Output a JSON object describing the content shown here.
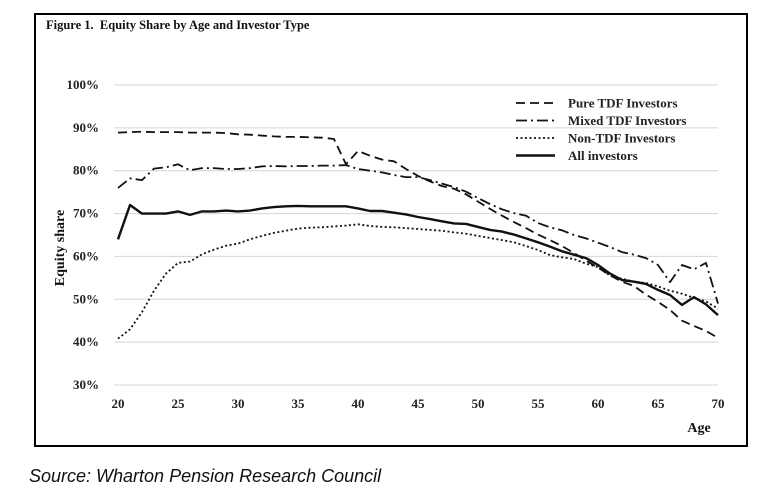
{
  "figure_title": "Figure 1.  Equity Share by Age and Investor Type",
  "source_note": "Source: Wharton Pension Research Council",
  "chart_data": {
    "type": "line",
    "title": "Figure 1.  Equity Share by Age and Investor Type",
    "xlabel": "Age",
    "ylabel": "Equity share",
    "xlim": [
      20,
      70
    ],
    "ylim": [
      0.3,
      1.0
    ],
    "x_ticks": [
      20,
      25,
      30,
      35,
      40,
      45,
      50,
      55,
      60,
      65,
      70
    ],
    "y_ticks": [
      0.3,
      0.4,
      0.5,
      0.6,
      0.7,
      0.8,
      0.9,
      1.0
    ],
    "x_tick_labels": [
      "20",
      "25",
      "30",
      "35",
      "40",
      "45",
      "50",
      "55",
      "60",
      "65",
      "70"
    ],
    "y_tick_labels": [
      "30%",
      "40%",
      "50%",
      "60%",
      "70%",
      "80%",
      "90%",
      "100%"
    ],
    "grid": "horizontal",
    "legend_position": "top-right",
    "x": [
      20,
      21,
      22,
      23,
      24,
      25,
      26,
      27,
      28,
      29,
      30,
      31,
      32,
      33,
      34,
      35,
      36,
      37,
      38,
      39,
      40,
      41,
      42,
      43,
      44,
      45,
      46,
      47,
      48,
      49,
      50,
      51,
      52,
      53,
      54,
      55,
      56,
      57,
      58,
      59,
      60,
      61,
      62,
      63,
      64,
      65,
      66,
      67,
      68,
      69,
      70
    ],
    "series": [
      {
        "name": "Pure TDF Investors",
        "style": "dashed",
        "color": "#111111",
        "values": [
          0.889,
          0.89,
          0.891,
          0.89,
          0.89,
          0.89,
          0.889,
          0.889,
          0.889,
          0.888,
          0.885,
          0.884,
          0.882,
          0.88,
          0.879,
          0.879,
          0.878,
          0.877,
          0.874,
          0.815,
          0.846,
          0.835,
          0.826,
          0.822,
          0.804,
          0.788,
          0.775,
          0.764,
          0.758,
          0.745,
          0.728,
          0.711,
          0.695,
          0.68,
          0.666,
          0.651,
          0.638,
          0.624,
          0.608,
          0.59,
          0.574,
          0.556,
          0.541,
          0.531,
          0.511,
          0.494,
          0.475,
          0.45,
          0.438,
          0.426,
          0.41
        ]
      },
      {
        "name": "Mixed TDF Investors",
        "style": "dash-dot",
        "color": "#111111",
        "values": [
          0.76,
          0.782,
          0.778,
          0.805,
          0.808,
          0.815,
          0.801,
          0.806,
          0.806,
          0.804,
          0.804,
          0.806,
          0.81,
          0.811,
          0.81,
          0.811,
          0.811,
          0.812,
          0.812,
          0.813,
          0.804,
          0.8,
          0.796,
          0.79,
          0.785,
          0.785,
          0.778,
          0.77,
          0.762,
          0.751,
          0.736,
          0.722,
          0.71,
          0.701,
          0.695,
          0.678,
          0.668,
          0.661,
          0.65,
          0.642,
          0.632,
          0.622,
          0.61,
          0.604,
          0.596,
          0.58,
          0.54,
          0.58,
          0.57,
          0.585,
          0.49
        ]
      },
      {
        "name": "Non-TDF Investors",
        "style": "dotted",
        "color": "#111111",
        "values": [
          0.408,
          0.43,
          0.47,
          0.52,
          0.56,
          0.585,
          0.588,
          0.605,
          0.616,
          0.625,
          0.63,
          0.64,
          0.648,
          0.655,
          0.66,
          0.665,
          0.667,
          0.668,
          0.67,
          0.672,
          0.675,
          0.671,
          0.669,
          0.668,
          0.666,
          0.664,
          0.662,
          0.66,
          0.656,
          0.653,
          0.648,
          0.643,
          0.638,
          0.633,
          0.624,
          0.615,
          0.603,
          0.598,
          0.594,
          0.583,
          0.575,
          0.555,
          0.548,
          0.541,
          0.538,
          0.53,
          0.52,
          0.513,
          0.503,
          0.495,
          0.478
        ]
      },
      {
        "name": "All investors",
        "style": "solid",
        "color": "#111111",
        "values": [
          0.64,
          0.72,
          0.7,
          0.7,
          0.7,
          0.705,
          0.697,
          0.705,
          0.705,
          0.707,
          0.705,
          0.707,
          0.712,
          0.715,
          0.717,
          0.718,
          0.717,
          0.717,
          0.717,
          0.717,
          0.712,
          0.706,
          0.706,
          0.702,
          0.698,
          0.692,
          0.687,
          0.682,
          0.677,
          0.676,
          0.669,
          0.662,
          0.658,
          0.651,
          0.642,
          0.633,
          0.623,
          0.612,
          0.604,
          0.596,
          0.58,
          0.56,
          0.545,
          0.541,
          0.536,
          0.522,
          0.51,
          0.487,
          0.505,
          0.488,
          0.463
        ]
      }
    ]
  }
}
